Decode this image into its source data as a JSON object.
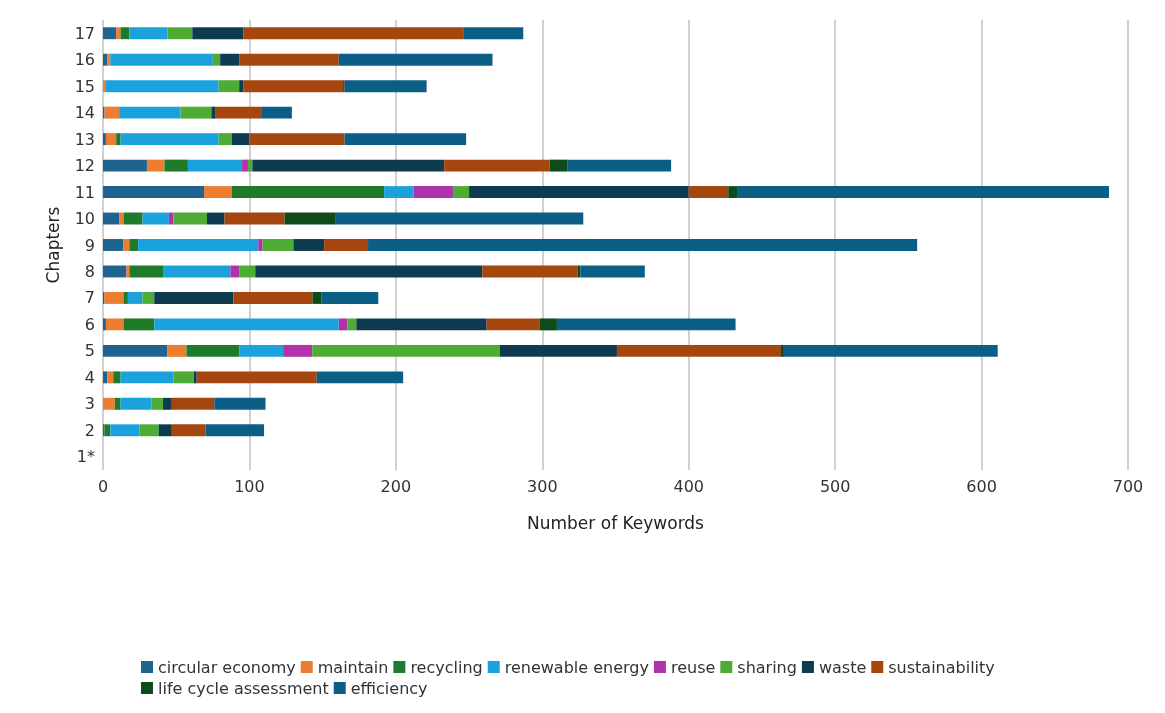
{
  "chart_data": {
    "type": "bar",
    "orientation": "horizontal",
    "stacked": true,
    "xlabel": "Number of Keywords",
    "ylabel": "Chapters",
    "categories": [
      "17",
      "16",
      "15",
      "14",
      "13",
      "12",
      "11",
      "10",
      "9",
      "8",
      "7",
      "6",
      "5",
      "4",
      "3",
      "2",
      "1*"
    ],
    "xlim": [
      0,
      700
    ],
    "xticks": [
      0,
      100,
      200,
      300,
      400,
      500,
      600,
      700
    ],
    "grid": "x",
    "legend": "bottom",
    "series": [
      {
        "name": "circular economy",
        "color": "#1f6391",
        "values": [
          9,
          3,
          0,
          1,
          2,
          30,
          69,
          11,
          14,
          16,
          1,
          2,
          44,
          3,
          0,
          1,
          0
        ]
      },
      {
        "name": "maintain",
        "color": "#ed7d31",
        "values": [
          3,
          2,
          2,
          10,
          7,
          12,
          19,
          3,
          4,
          2,
          13,
          12,
          13,
          4,
          8,
          0,
          0
        ]
      },
      {
        "name": "recycling",
        "color": "#1e7b2a",
        "values": [
          6,
          0,
          0,
          0,
          3,
          16,
          104,
          13,
          6,
          23,
          3,
          21,
          36,
          5,
          4,
          4,
          0
        ]
      },
      {
        "name": "renewable energy",
        "color": "#1ba2dc",
        "values": [
          26,
          70,
          77,
          42,
          67,
          37,
          20,
          18,
          82,
          46,
          10,
          126,
          30,
          36,
          21,
          20,
          0
        ]
      },
      {
        "name": "reuse",
        "color": "#b033a8",
        "values": [
          0,
          0,
          0,
          0,
          0,
          4,
          27,
          3,
          3,
          6,
          0,
          6,
          20,
          0,
          0,
          0,
          0
        ]
      },
      {
        "name": "sharing",
        "color": "#4eac34",
        "values": [
          17,
          5,
          14,
          21,
          9,
          3,
          11,
          23,
          21,
          11,
          8,
          6,
          128,
          14,
          8,
          13,
          0
        ]
      },
      {
        "name": "waste",
        "color": "#0e3b4f",
        "values": [
          35,
          13,
          3,
          3,
          12,
          131,
          150,
          12,
          21,
          155,
          54,
          89,
          80,
          2,
          6,
          9,
          0
        ]
      },
      {
        "name": "sustainability",
        "color": "#a5460f",
        "values": [
          150,
          68,
          68,
          31,
          65,
          72,
          27,
          41,
          30,
          65,
          54,
          36,
          112,
          82,
          29,
          23,
          0
        ]
      },
      {
        "name": "life cycle assessment",
        "color": "#0f4a1b",
        "values": [
          0,
          0,
          1,
          0,
          0,
          12,
          6,
          35,
          0,
          2,
          6,
          12,
          2,
          0,
          0,
          0,
          0
        ]
      },
      {
        "name": "efficiency",
        "color": "#0b5f87",
        "values": [
          41,
          105,
          56,
          21,
          83,
          71,
          254,
          169,
          375,
          44,
          39,
          122,
          146,
          59,
          35,
          40,
          0
        ]
      }
    ]
  }
}
